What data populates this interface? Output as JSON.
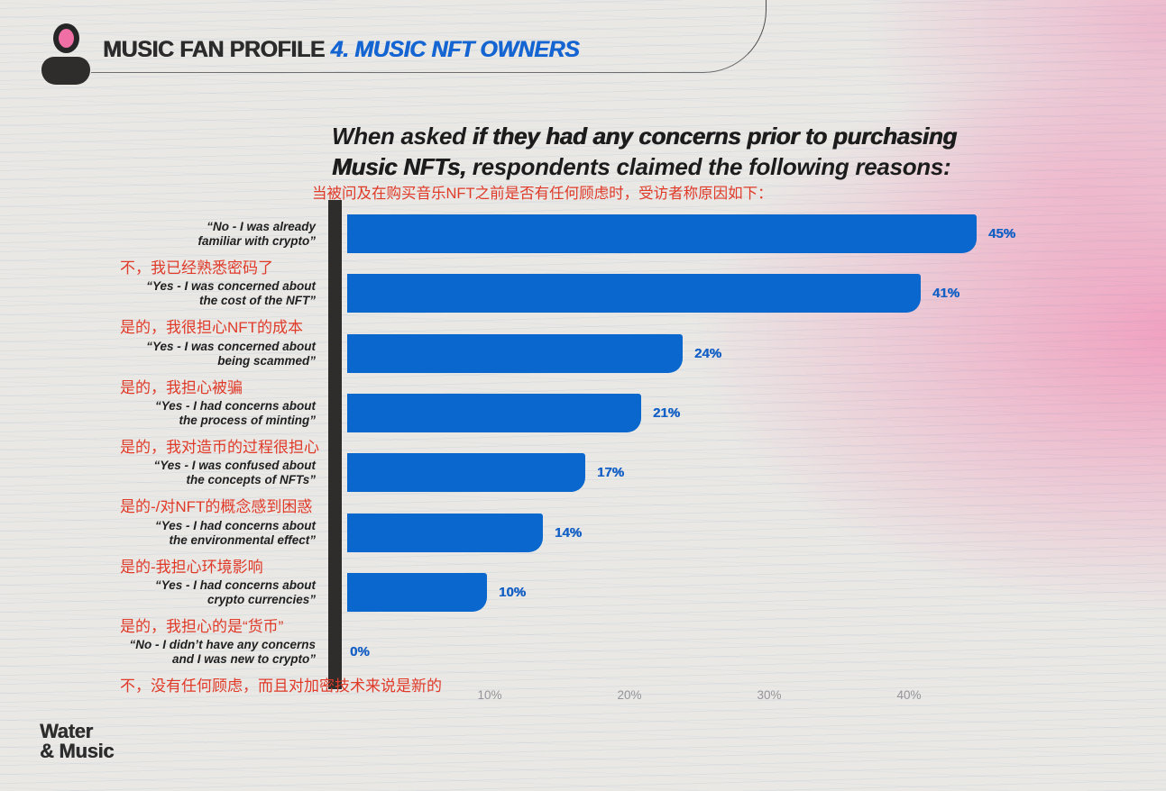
{
  "header": {
    "title_main": "MUSIC FAN PROFILE",
    "title_accent": "4. MUSIC NFT OWNERS"
  },
  "heading": {
    "l1_lead": "When asked ",
    "l1_strong": "if they had any concerns prior to purchasing",
    "l2_strong": "Music NFTs,",
    "l2_rest": " respondents claimed the following reasons:",
    "subtitle_zh": "当被问及在购买音乐NFT之前是否有任何顾虑时，受访者称原因如下："
  },
  "chart_data": {
    "type": "bar",
    "orientation": "horizontal",
    "unit": "%",
    "xlim": [
      0,
      45
    ],
    "grid": false,
    "bar_color": "#0a67cd",
    "x_ticks": [
      {
        "label": "10%",
        "value": 10
      },
      {
        "label": "20%",
        "value": 20
      },
      {
        "label": "30%",
        "value": 30
      },
      {
        "label": "40%",
        "value": 40
      }
    ],
    "rows": [
      {
        "label_en": "“No - I was already\nfamiliar with crypto”",
        "label_zh": "不，我已经熟悉密码了",
        "value": 45,
        "value_label": "45%"
      },
      {
        "label_en": "“Yes - I was concerned about\nthe cost of the NFT”",
        "label_zh": "是的，我很担心NFT的成本",
        "value": 41,
        "value_label": "41%"
      },
      {
        "label_en": "“Yes - I was concerned about\nbeing scammed”",
        "label_zh": "是的，我担心被骗",
        "value": 24,
        "value_label": "24%"
      },
      {
        "label_en": "“Yes - I had concerns about\nthe process of minting”",
        "label_zh": "是的，我对造币的过程很担心",
        "value": 21,
        "value_label": "21%"
      },
      {
        "label_en": "“Yes - I was confused about\nthe concepts of NFTs”",
        "label_zh": "是的-/对NFT的概念感到困惑",
        "value": 17,
        "value_label": "17%"
      },
      {
        "label_en": "“Yes - I had concerns about\nthe environmental effect”",
        "label_zh": "是的-我担心环境影响",
        "value": 14,
        "value_label": "14%"
      },
      {
        "label_en": "“Yes - I had concerns about\ncrypto currencies”",
        "label_zh": "是的，我担心的是“货币”",
        "value": 10,
        "value_label": "10%"
      },
      {
        "label_en": "“No - I didn’t have any concerns\nand I was new to crypto”",
        "label_zh": "不，没有任何顾虑，而且对加密技术来说是新的",
        "value": 0,
        "value_label": "0%"
      }
    ]
  },
  "footer": {
    "logo_line1": "Water",
    "logo_line2": "& Music"
  },
  "colors": {
    "background": "#e9e8e5",
    "bar_blue": "#0a67cd",
    "accent_blue": "#1464d2",
    "value_blue": "#1560c5",
    "alert_red": "#e03a29",
    "axis_black": "#2f2d2b",
    "tick_gray": "#94949a",
    "text_dark": "#1c1c1c",
    "avatar_pink": "#f06fa5"
  }
}
